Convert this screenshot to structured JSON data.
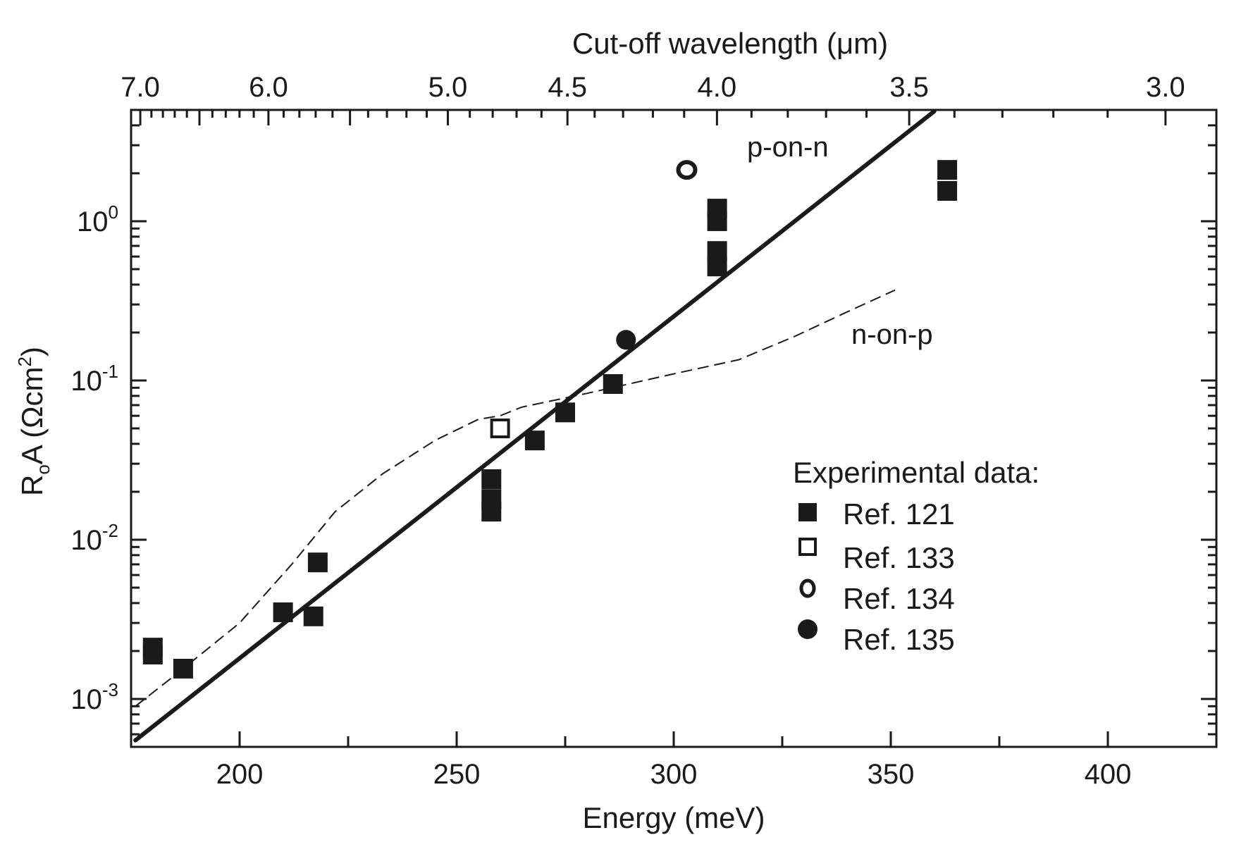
{
  "chart_data": {
    "type": "scatter",
    "xlabel": "Energy (meV)",
    "x2label": "Cut-off wavelength (μm)",
    "ylabel": {
      "main": "R",
      "subscript": "o",
      "mid": "A (Ωcm",
      "superscript": "2",
      "end": ")"
    },
    "xlim": [
      175,
      425
    ],
    "ylim": [
      0.0005,
      5
    ],
    "y_scale": "log",
    "x_ticks": [
      200,
      250,
      300,
      350,
      400
    ],
    "x_tick_labels": [
      "200",
      "250",
      "300",
      "350",
      "400"
    ],
    "y_ticks": [
      {
        "value": 0.001,
        "base": "10",
        "exp": "-3"
      },
      {
        "value": 0.01,
        "base": "10",
        "exp": "-2"
      },
      {
        "value": 0.1,
        "base": "10",
        "exp": "-1"
      },
      {
        "value": 1,
        "base": "10",
        "exp": "0"
      }
    ],
    "top_ticks": [
      {
        "value": 7.0,
        "label": "7.0"
      },
      {
        "value": 6.0,
        "label": "6.0"
      },
      {
        "value": 5.0,
        "label": "5.0"
      },
      {
        "value": 4.5,
        "label": "4.5"
      },
      {
        "value": 4.0,
        "label": "4.0"
      },
      {
        "value": 3.5,
        "label": "3.5"
      },
      {
        "value": 3.0,
        "label": "3.0"
      }
    ],
    "series": [
      {
        "name": "Ref. 121",
        "marker": "filled-square",
        "points": [
          {
            "x": 180,
            "y": 0.0021
          },
          {
            "x": 180,
            "y": 0.0019
          },
          {
            "x": 187,
            "y": 0.00155
          },
          {
            "x": 210,
            "y": 0.0035
          },
          {
            "x": 217,
            "y": 0.0033
          },
          {
            "x": 218,
            "y": 0.0072
          },
          {
            "x": 258,
            "y": 0.024
          },
          {
            "x": 258,
            "y": 0.018
          },
          {
            "x": 258,
            "y": 0.015
          },
          {
            "x": 268,
            "y": 0.042
          },
          {
            "x": 275,
            "y": 0.063
          },
          {
            "x": 286,
            "y": 0.095
          },
          {
            "x": 310,
            "y": 1.2
          },
          {
            "x": 310,
            "y": 1.0
          },
          {
            "x": 310,
            "y": 0.65
          },
          {
            "x": 310,
            "y": 0.52
          },
          {
            "x": 363,
            "y": 2.1
          },
          {
            "x": 363,
            "y": 1.55
          }
        ]
      },
      {
        "name": "Ref. 133",
        "marker": "open-square",
        "points": [
          {
            "x": 260,
            "y": 0.05
          }
        ]
      },
      {
        "name": "Ref. 134",
        "marker": "open-circle",
        "points": [
          {
            "x": 303,
            "y": 2.1
          }
        ]
      },
      {
        "name": "Ref. 135",
        "marker": "filled-circle",
        "points": [
          {
            "x": 289,
            "y": 0.18
          }
        ]
      }
    ],
    "lines": [
      {
        "label": "p-on-n",
        "style": "solid",
        "points": [
          {
            "x": 176,
            "y": 0.00055
          },
          {
            "x": 360,
            "y": 4.9
          }
        ]
      },
      {
        "label": "n-on-p",
        "style": "dashed",
        "points": [
          {
            "x": 176,
            "y": 0.0009
          },
          {
            "x": 185,
            "y": 0.0014
          },
          {
            "x": 200,
            "y": 0.003
          },
          {
            "x": 212,
            "y": 0.007
          },
          {
            "x": 222,
            "y": 0.015
          },
          {
            "x": 233,
            "y": 0.026
          },
          {
            "x": 245,
            "y": 0.042
          },
          {
            "x": 255,
            "y": 0.057
          },
          {
            "x": 260,
            "y": 0.06
          },
          {
            "x": 265,
            "y": 0.068
          },
          {
            "x": 280,
            "y": 0.083
          },
          {
            "x": 300,
            "y": 0.11
          },
          {
            "x": 315,
            "y": 0.135
          },
          {
            "x": 328,
            "y": 0.19
          },
          {
            "x": 340,
            "y": 0.27
          },
          {
            "x": 351,
            "y": 0.37
          }
        ]
      }
    ],
    "legend": {
      "title": "Experimental data:",
      "placement": "lower-right",
      "entries": [
        "Ref. 121",
        "Ref. 133",
        "Ref. 134",
        "Ref. 135"
      ]
    },
    "grid": false
  }
}
